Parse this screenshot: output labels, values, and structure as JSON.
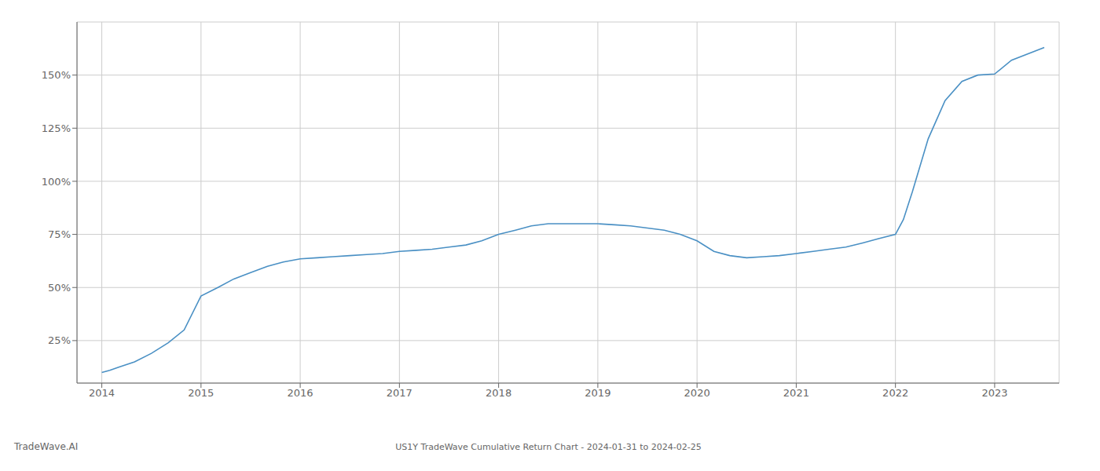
{
  "chart_data": {
    "type": "line",
    "title": "US1Y TradeWave Cumulative Return Chart - 2024-01-31 to 2024-02-25",
    "annotations": [
      "TradeWave.AI"
    ],
    "x": [
      2014.0,
      2014.08,
      2014.17,
      2014.33,
      2014.5,
      2014.67,
      2014.83,
      2015.0,
      2015.17,
      2015.33,
      2015.5,
      2015.67,
      2015.83,
      2016.0,
      2016.17,
      2016.33,
      2016.5,
      2016.67,
      2016.83,
      2017.0,
      2017.17,
      2017.33,
      2017.5,
      2017.67,
      2017.83,
      2018.0,
      2018.17,
      2018.33,
      2018.5,
      2018.67,
      2018.83,
      2019.0,
      2019.17,
      2019.33,
      2019.5,
      2019.67,
      2019.83,
      2020.0,
      2020.17,
      2020.33,
      2020.5,
      2020.67,
      2020.83,
      2021.0,
      2021.17,
      2021.33,
      2021.5,
      2021.67,
      2021.83,
      2022.0,
      2022.08,
      2022.17,
      2022.33,
      2022.5,
      2022.67,
      2022.83,
      2023.0,
      2023.17,
      2023.5
    ],
    "values": [
      10.0,
      11.0,
      12.5,
      15.0,
      19.0,
      24.0,
      30.0,
      46.0,
      50.0,
      54.0,
      57.0,
      60.0,
      62.0,
      63.5,
      64.0,
      64.5,
      65.0,
      65.5,
      66.0,
      67.0,
      67.5,
      68.0,
      69.0,
      70.0,
      72.0,
      75.0,
      77.0,
      79.0,
      80.0,
      80.0,
      80.0,
      80.0,
      79.5,
      79.0,
      78.0,
      77.0,
      75.0,
      72.0,
      67.0,
      65.0,
      64.0,
      64.5,
      65.0,
      66.0,
      67.0,
      68.0,
      69.0,
      71.0,
      73.0,
      75.0,
      82.0,
      95.0,
      120.0,
      138.0,
      147.0,
      150.0,
      150.5,
      157.0,
      163.0
    ],
    "color": "#4a90c4",
    "xlim": [
      2013.75,
      2023.65
    ],
    "ylim": [
      5,
      175
    ],
    "xticks": [
      2014,
      2015,
      2016,
      2017,
      2018,
      2019,
      2020,
      2021,
      2022,
      2023
    ],
    "yticks": [
      {
        "value": 25,
        "label": "25%"
      },
      {
        "value": 50,
        "label": "50%"
      },
      {
        "value": 75,
        "label": "75%"
      },
      {
        "value": 100,
        "label": "100%"
      },
      {
        "value": 125,
        "label": "125%"
      },
      {
        "value": 150,
        "label": "150%"
      }
    ],
    "grid": true
  }
}
